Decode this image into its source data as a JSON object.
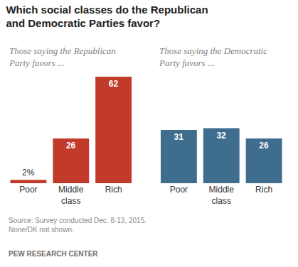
{
  "title": "Which social classes do the Republican and Democratic Parties favor?",
  "notes": [
    "Source: Survey conducted Dec. 8-13, 2015.",
    "None/DK not shown."
  ],
  "credit": "PEW RESEARCH CENTER",
  "chart_data": [
    {
      "type": "bar",
      "subtitle": "Those saying the Republican Party favors ...",
      "categories": [
        "Poor",
        "Middle class",
        "Rich"
      ],
      "values": [
        2,
        26,
        62
      ],
      "value_labels": [
        "2%",
        "26",
        "62"
      ],
      "color": "#c23b2a",
      "ylim": [
        0,
        62
      ],
      "data_labels": true,
      "tick_labels": "x",
      "grid": false
    },
    {
      "type": "bar",
      "subtitle": "Those saying the Democratic Party favors ...",
      "categories": [
        "Poor",
        "Middle class",
        "Rich"
      ],
      "values": [
        31,
        32,
        26
      ],
      "color": "#3e6d8e",
      "ylim": [
        0,
        62
      ],
      "data_labels": true,
      "tick_labels": "x",
      "grid": false
    }
  ]
}
